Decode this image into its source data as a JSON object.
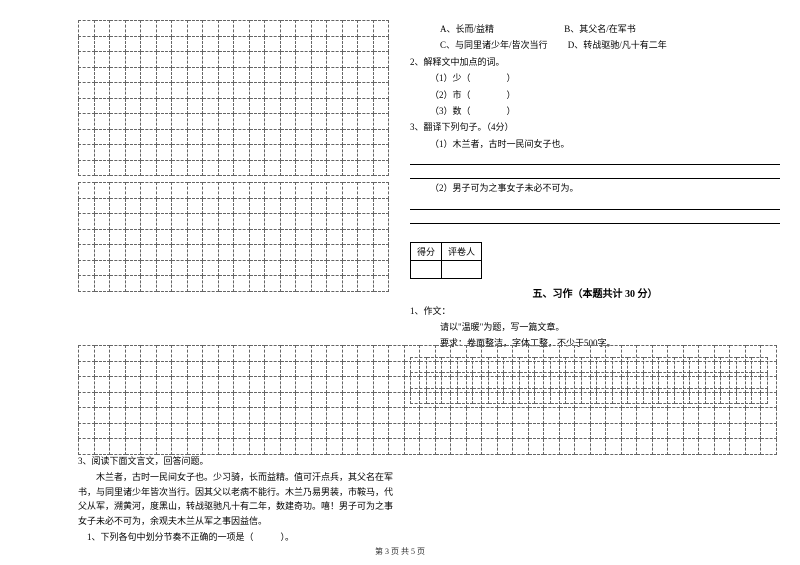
{
  "leftGrid": {
    "rows": 10,
    "cols": 20
  },
  "leftGrid2": {
    "rows": 7,
    "cols": 20
  },
  "passage": {
    "q3": "3、阅读下面文言文，回答问题。",
    "body": "　　木兰者，古时一民间女子也。少习骑，长而益精。值可汗点兵，其父名在军书，与同里诸少年皆次当行。因其父以老病不能行。木兰乃易男装，市鞍马，代父从军，溯黄河，度黑山，转战驱驰凡十有二年，数建奇功。嘻！男子可为之事女子未必不可为，余观夫木兰从军之事因益信。",
    "sub1": "　1、下列各句中划分节奏不正确的一项是（　　　）。"
  },
  "choices": {
    "a": "A、长而/益精",
    "b": "B、其父名/在军书",
    "c": "C、与同里诸少年/皆次当行",
    "d": "D、转战驱驰/凡十有二年"
  },
  "q2": {
    "title": "2、解释文中加点的词。",
    "item1": "（1）少（　　　　）",
    "item2": "（2）市（　　　　）",
    "item3": "（3）数（　　　　）"
  },
  "q3t": {
    "title": "3、翻译下列句子。（4分）",
    "item1": "（1）木兰者，古时一民间女子也。",
    "item2": "（2）男子可为之事女子未必不可为。"
  },
  "scoreBox": {
    "c1": "得分",
    "c2": "评卷人"
  },
  "section5": {
    "title": "五、习作（本题共计 30 分）",
    "q1": "1、作文：",
    "line1": "请以\"温暖\"为题，写一篇文章。",
    "line2": "要求：卷面整洁，字体工整，不少于500字。"
  },
  "rightGrid": {
    "rows": 3,
    "cols": 23
  },
  "wideGrid": {
    "rows": 7,
    "cols": 45
  },
  "footer": "第 3 页 共 5 页",
  "gridStyle": {
    "cellSize": 15.5,
    "borderStyle": "dashed",
    "borderColor": "#666666"
  }
}
